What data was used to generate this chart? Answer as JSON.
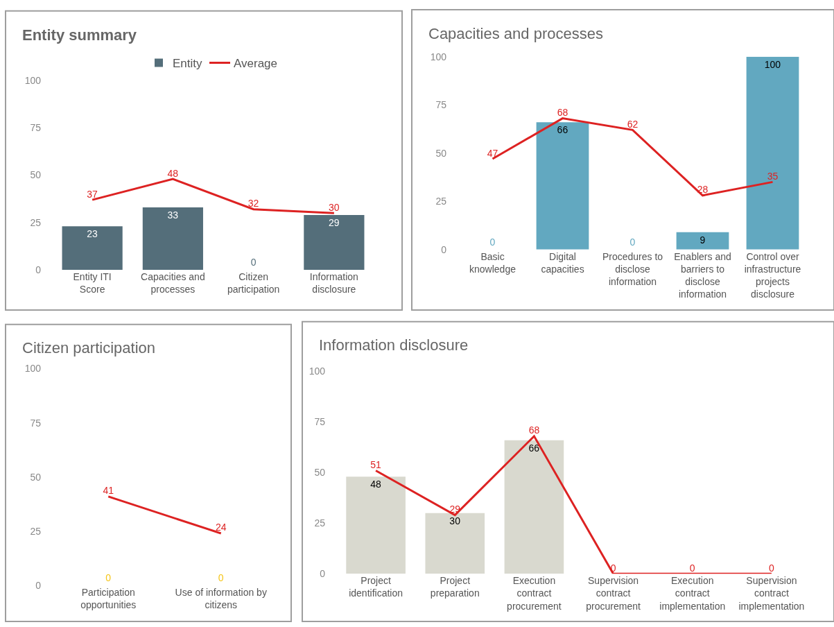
{
  "chart_data": [
    {
      "type": "bar",
      "title": "Entity summary",
      "categories": [
        "Entity ITI Score",
        "Capacities and processes",
        "Citizen participation",
        "Information disclosure"
      ],
      "series": [
        {
          "name": "Entity",
          "color": "#546e7a",
          "values": [
            23,
            33,
            0,
            29
          ]
        },
        {
          "name": "Average",
          "type": "line",
          "color": "#dd2222",
          "values": [
            37,
            48,
            32,
            30
          ]
        }
      ],
      "ylim": [
        0,
        100
      ],
      "yticks": [
        0,
        25,
        50,
        75,
        100
      ],
      "legend": "top",
      "data_labels": true
    },
    {
      "type": "bar",
      "title": "Capacities and processes",
      "categories": [
        "Basic knowledge",
        "Digital capacities",
        "Procedures to disclose information",
        "Enablers and barriers to disclose information",
        "Control over infrastructure projects disclosure"
      ],
      "series": [
        {
          "color": "#62a8c0",
          "values": [
            0,
            66,
            0,
            9,
            100
          ]
        },
        {
          "type": "line",
          "color": "#dd2222",
          "values": [
            47,
            68,
            62,
            28,
            35
          ]
        }
      ],
      "ylim": [
        0,
        100
      ],
      "yticks": [
        0,
        25,
        50,
        75,
        100
      ],
      "data_labels": true
    },
    {
      "type": "bar",
      "title": "Citizen participation",
      "categories": [
        "Participation opportunities",
        "Use of information by citizens"
      ],
      "series": [
        {
          "color": "#f5c518",
          "values": [
            0,
            0
          ]
        },
        {
          "type": "line",
          "color": "#dd2222",
          "values": [
            41,
            24
          ]
        }
      ],
      "ylim": [
        0,
        100
      ],
      "yticks": [
        0,
        25,
        50,
        75,
        100
      ],
      "data_labels": true
    },
    {
      "type": "bar",
      "title": "Information disclosure",
      "categories": [
        "Project identification",
        "Project preparation",
        "Execution contract procurement",
        "Supervision contract procurement",
        "Execution contract implementation",
        "Supervision contract implementation"
      ],
      "series": [
        {
          "color": "#d9d9cf",
          "values": [
            48,
            30,
            66,
            null,
            null,
            null
          ]
        },
        {
          "type": "line",
          "color": "#dd2222",
          "values": [
            51,
            29,
            68,
            0,
            0,
            0
          ]
        }
      ],
      "ylim": [
        0,
        100
      ],
      "yticks": [
        0,
        25,
        50,
        75,
        100
      ],
      "data_labels": true
    }
  ]
}
